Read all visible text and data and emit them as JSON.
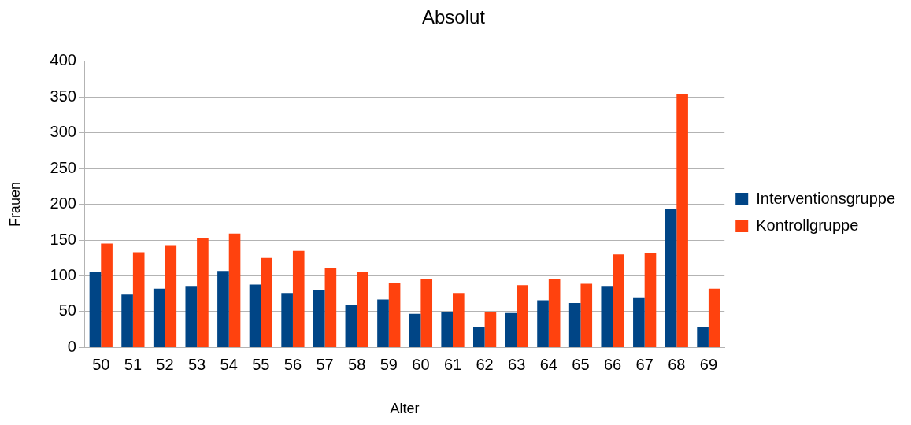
{
  "chart_data": {
    "type": "bar",
    "title": "Absolut",
    "xlabel": "Alter",
    "ylabel": "Frauen",
    "categories": [
      "50",
      "51",
      "52",
      "53",
      "54",
      "55",
      "56",
      "57",
      "58",
      "59",
      "60",
      "61",
      "62",
      "63",
      "64",
      "65",
      "66",
      "67",
      "68",
      "69"
    ],
    "series": [
      {
        "name": "Interventionsgruppe",
        "color": "#004586",
        "values": [
          105,
          74,
          82,
          85,
          107,
          88,
          76,
          80,
          59,
          67,
          47,
          49,
          28,
          48,
          66,
          62,
          85,
          70,
          194,
          28
        ]
      },
      {
        "name": "Kontrollgruppe",
        "color": "#ff420e",
        "values": [
          145,
          133,
          143,
          153,
          159,
          125,
          135,
          111,
          106,
          90,
          96,
          76,
          50,
          87,
          96,
          89,
          130,
          132,
          354,
          82
        ]
      }
    ],
    "ylim": [
      0,
      400
    ],
    "yticks": [
      0,
      50,
      100,
      150,
      200,
      250,
      300,
      350,
      400
    ],
    "grid": "y",
    "legend": "right"
  }
}
